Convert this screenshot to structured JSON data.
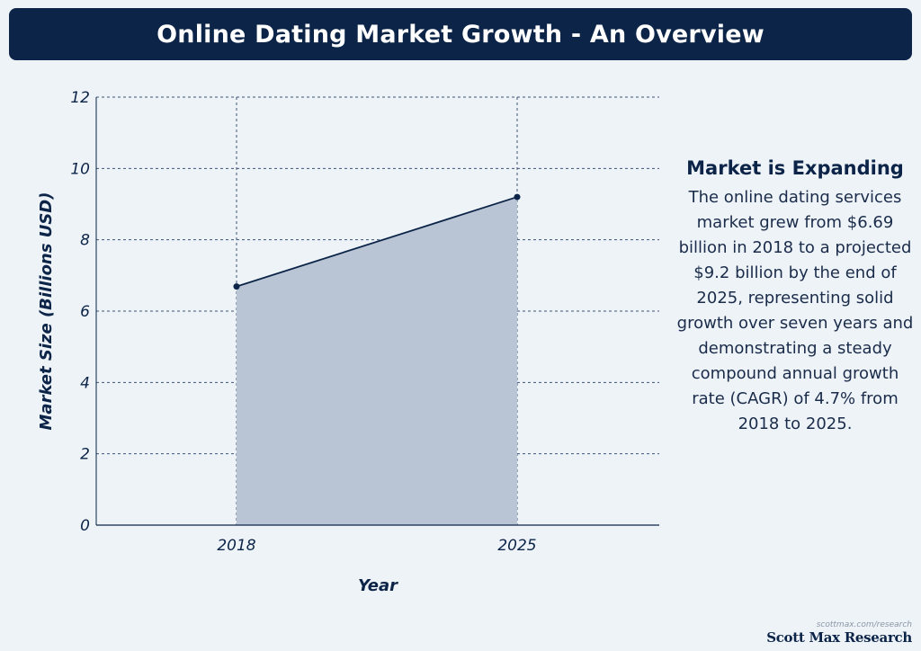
{
  "header": {
    "title": "Online Dating Market Growth - An Overview"
  },
  "chart_data": {
    "type": "area",
    "x": [
      "2018",
      "2025"
    ],
    "values": [
      6.69,
      9.2
    ],
    "xlabel": "Year",
    "ylabel": "Market Size (Billions USD)",
    "ylim": [
      0,
      12
    ],
    "yticks": [
      0,
      2,
      4,
      6,
      8,
      10,
      12
    ],
    "grid": true,
    "colors": {
      "line": "#0b2448",
      "fill": "#b9c5d4",
      "grid": "#3f5675",
      "axis": "#0b2448"
    }
  },
  "annotation": {
    "heading": "Market is Expanding",
    "body": "The online dating services market grew from $6.69 billion in 2018 to a projected $9.2 billion by the end of 2025, representing solid growth over seven years and demonstrating a steady compound annual growth rate (CAGR) of 4.7% from 2018 to 2025."
  },
  "footer": {
    "url": "scottmax.com/research",
    "brand": "Scott Max Research"
  }
}
